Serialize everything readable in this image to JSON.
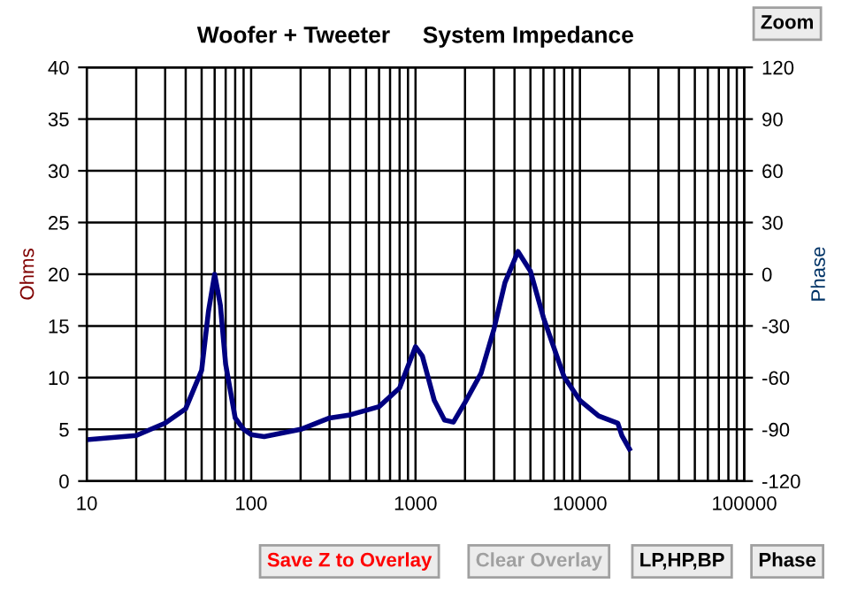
{
  "chart_data": {
    "type": "line",
    "title": "Woofer + Tweeter     System Impedance",
    "xlabel": null,
    "ylabel": "Ohms",
    "y2label": "Phase",
    "x": [
      10,
      20,
      30,
      40,
      50,
      55,
      60,
      65,
      70,
      80,
      90,
      100,
      120,
      200,
      300,
      400,
      600,
      800,
      1000,
      1100,
      1300,
      1500,
      1700,
      2000,
      2500,
      3000,
      3500,
      4200,
      5000,
      6000,
      8000,
      10000,
      13000,
      17000,
      18000,
      20000
    ],
    "series": [
      {
        "color": "#000080",
        "values": [
          4.0,
          4.4,
          5.6,
          7.0,
          10.7,
          16.4,
          20.0,
          17.0,
          11.3,
          6.1,
          5.0,
          4.5,
          4.3,
          5.0,
          6.1,
          6.4,
          7.2,
          9.0,
          13.0,
          12.1,
          7.8,
          5.9,
          5.7,
          7.6,
          10.4,
          14.7,
          19.2,
          22.2,
          20.3,
          15.8,
          10.1,
          7.8,
          6.3,
          5.6,
          4.4,
          3.1
        ]
      }
    ],
    "log": "x",
    "xlim": [
      10,
      100000
    ],
    "xticks": [
      10,
      100,
      1000,
      10000,
      100000
    ],
    "ylim": [
      0,
      40
    ],
    "yticks": [
      0,
      5,
      10,
      15,
      20,
      25,
      30,
      35,
      40
    ],
    "y2lim": [
      -120,
      120
    ],
    "y2ticks": [
      -120,
      -90,
      -60,
      -30,
      0,
      30,
      60,
      90,
      120
    ],
    "grid": true,
    "marker": "none",
    "line_style": "solid",
    "annotations": [
      "Zoom",
      "Save Z to Overlay",
      "Clear Overlay",
      "LP,HP,BP",
      "Phase"
    ]
  }
}
